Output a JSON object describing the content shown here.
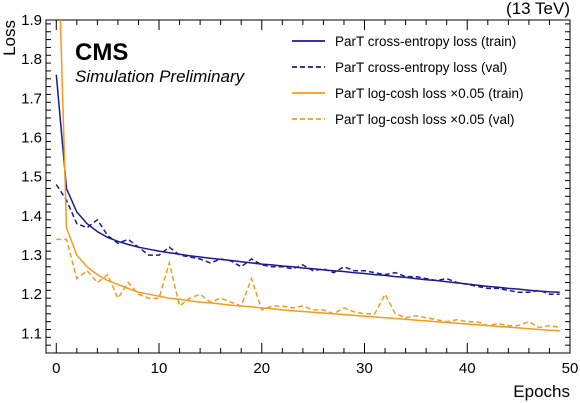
{
  "chart_data": {
    "type": "line",
    "xlabel": "Epochs",
    "ylabel": "Loss",
    "xlim": [
      -1,
      50
    ],
    "ylim": [
      1.05,
      1.9
    ],
    "x_ticks": [
      "0",
      "10",
      "20",
      "30",
      "40",
      "50"
    ],
    "y_ticks": [
      "1.1",
      "1.2",
      "1.3",
      "1.4",
      "1.5",
      "1.6",
      "1.7",
      "1.8",
      "1.9"
    ],
    "experiment": "CMS",
    "experiment_sub": "Simulation Preliminary",
    "energy": "(13 TeV)",
    "legend_position": "top-right",
    "grid": false,
    "colors": {
      "blue": "#1a1a8f",
      "orange": "#f59a1f"
    },
    "series": [
      {
        "name": "ParT cross-entropy loss (train)",
        "color": "#1a1a8f",
        "dash": "solid",
        "x": [
          0,
          1,
          2,
          3,
          4,
          5,
          6,
          7,
          8,
          9,
          10,
          11,
          12,
          13,
          14,
          15,
          16,
          17,
          18,
          19,
          20,
          21,
          22,
          23,
          24,
          25,
          26,
          27,
          28,
          29,
          30,
          31,
          32,
          33,
          34,
          35,
          36,
          37,
          38,
          39,
          40,
          41,
          42,
          43,
          44,
          45,
          46,
          47,
          48,
          49
        ],
        "values": [
          1.76,
          1.47,
          1.41,
          1.38,
          1.36,
          1.345,
          1.335,
          1.327,
          1.32,
          1.315,
          1.31,
          1.306,
          1.302,
          1.298,
          1.295,
          1.292,
          1.289,
          1.286,
          1.283,
          1.28,
          1.277,
          1.275,
          1.272,
          1.27,
          1.267,
          1.265,
          1.262,
          1.26,
          1.258,
          1.255,
          1.253,
          1.25,
          1.248,
          1.245,
          1.243,
          1.24,
          1.237,
          1.235,
          1.232,
          1.229,
          1.226,
          1.223,
          1.22,
          1.218,
          1.215,
          1.213,
          1.21,
          1.208,
          1.206,
          1.205
        ]
      },
      {
        "name": "ParT cross-entropy loss (val)",
        "color": "#1a1a8f",
        "dash": "dashed",
        "x": [
          0,
          1,
          2,
          3,
          4,
          5,
          6,
          7,
          8,
          9,
          10,
          11,
          12,
          13,
          14,
          15,
          16,
          17,
          18,
          19,
          20,
          21,
          22,
          23,
          24,
          25,
          26,
          27,
          28,
          29,
          30,
          31,
          32,
          33,
          34,
          35,
          36,
          37,
          38,
          39,
          40,
          41,
          42,
          43,
          44,
          45,
          46,
          47,
          48,
          49
        ],
        "values": [
          1.48,
          1.44,
          1.38,
          1.37,
          1.39,
          1.35,
          1.33,
          1.34,
          1.32,
          1.3,
          1.3,
          1.32,
          1.3,
          1.295,
          1.29,
          1.28,
          1.29,
          1.285,
          1.27,
          1.29,
          1.275,
          1.27,
          1.27,
          1.265,
          1.275,
          1.26,
          1.265,
          1.255,
          1.27,
          1.26,
          1.26,
          1.255,
          1.25,
          1.255,
          1.245,
          1.245,
          1.24,
          1.235,
          1.24,
          1.23,
          1.225,
          1.22,
          1.215,
          1.215,
          1.21,
          1.205,
          1.205,
          1.21,
          1.2,
          1.2
        ]
      },
      {
        "name": "ParT log-cosh loss ×0.05 (train)",
        "color": "#f59a1f",
        "dash": "solid",
        "x": [
          0.4,
          1,
          2,
          3,
          4,
          5,
          6,
          7,
          8,
          9,
          10,
          11,
          12,
          13,
          14,
          15,
          16,
          17,
          18,
          19,
          20,
          21,
          22,
          23,
          24,
          25,
          26,
          27,
          28,
          29,
          30,
          31,
          32,
          33,
          34,
          35,
          36,
          37,
          38,
          39,
          40,
          41,
          42,
          43,
          44,
          45,
          46,
          47,
          48,
          49
        ],
        "values": [
          1.9,
          1.37,
          1.3,
          1.27,
          1.25,
          1.235,
          1.225,
          1.215,
          1.205,
          1.2,
          1.195,
          1.19,
          1.187,
          1.183,
          1.18,
          1.178,
          1.175,
          1.172,
          1.17,
          1.168,
          1.165,
          1.163,
          1.16,
          1.158,
          1.156,
          1.154,
          1.152,
          1.15,
          1.148,
          1.146,
          1.144,
          1.142,
          1.14,
          1.138,
          1.136,
          1.134,
          1.132,
          1.13,
          1.128,
          1.126,
          1.124,
          1.122,
          1.12,
          1.118,
          1.116,
          1.114,
          1.112,
          1.11,
          1.108,
          1.107
        ]
      },
      {
        "name": "ParT log-cosh loss ×0.05 (val)",
        "color": "#f59a1f",
        "dash": "dashed",
        "x": [
          0,
          1,
          2,
          3,
          4,
          5,
          6,
          7,
          8,
          9,
          10,
          11,
          12,
          13,
          14,
          15,
          16,
          17,
          18,
          19,
          20,
          21,
          22,
          23,
          24,
          25,
          26,
          27,
          28,
          29,
          30,
          31,
          32,
          33,
          34,
          35,
          36,
          37,
          38,
          39,
          40,
          41,
          42,
          43,
          44,
          45,
          46,
          47,
          48,
          49
        ],
        "values": [
          1.34,
          1.34,
          1.24,
          1.26,
          1.23,
          1.25,
          1.19,
          1.23,
          1.2,
          1.19,
          1.19,
          1.28,
          1.17,
          1.19,
          1.2,
          1.18,
          1.19,
          1.18,
          1.17,
          1.24,
          1.16,
          1.17,
          1.17,
          1.165,
          1.17,
          1.16,
          1.16,
          1.15,
          1.165,
          1.155,
          1.15,
          1.15,
          1.2,
          1.15,
          1.14,
          1.145,
          1.14,
          1.135,
          1.13,
          1.135,
          1.13,
          1.13,
          1.12,
          1.125,
          1.12,
          1.12,
          1.13,
          1.115,
          1.12,
          1.115
        ]
      }
    ]
  }
}
